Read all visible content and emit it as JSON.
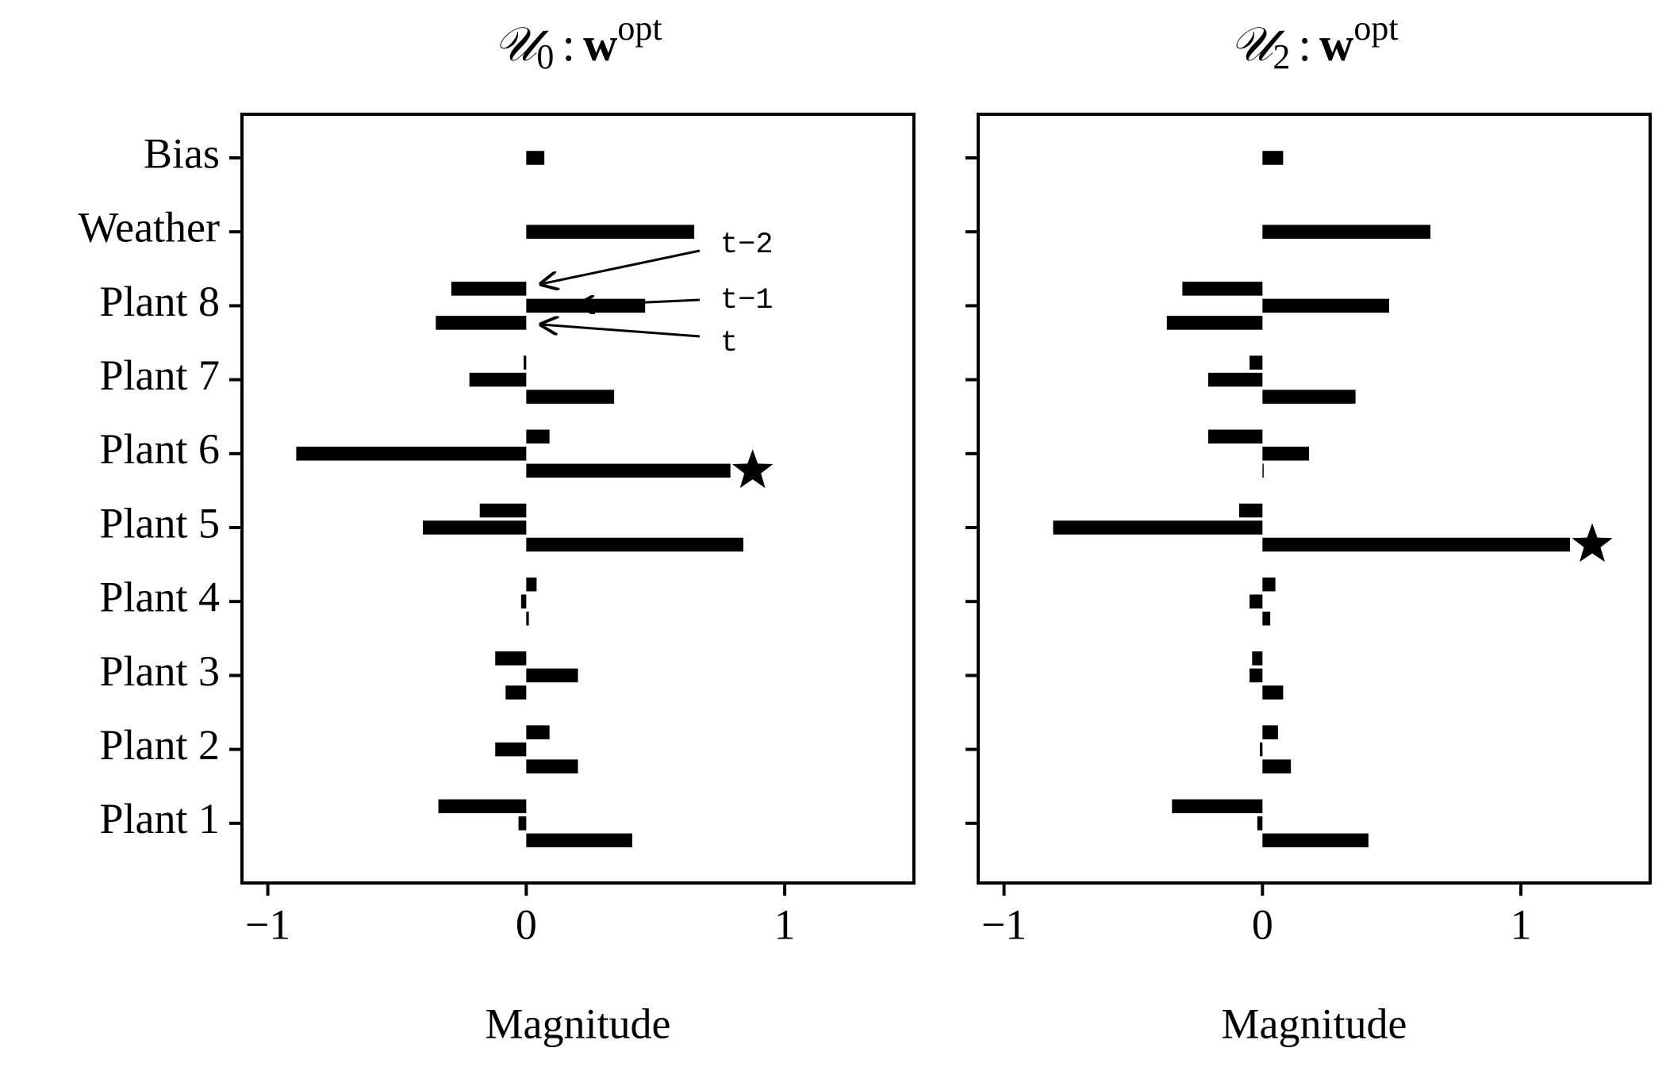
{
  "chart_data": [
    {
      "type": "barh",
      "title": {
        "base": "𝒰",
        "sub": "0",
        "sep": ":",
        "vec": "w",
        "sup": "opt"
      },
      "xlabel": "Magnitude",
      "categories": [
        "Bias",
        "Weather",
        "Plant 8",
        "Plant 7",
        "Plant 6",
        "Plant 5",
        "Plant 4",
        "Plant 3",
        "Plant 2",
        "Plant 1"
      ],
      "xlim": [
        -1.1,
        1.5
      ],
      "xticks": [
        {
          "value": -1,
          "label": "−1"
        },
        0,
        1
      ],
      "highlight": {
        "series": 2,
        "index": 4
      },
      "series": [
        {
          "name": "t−2",
          "color": "#000000",
          "values": [
            null,
            null,
            -0.29,
            -0.01,
            0.09,
            -0.18,
            0.04,
            -0.12,
            0.09,
            -0.34
          ]
        },
        {
          "name": "t−1",
          "color": "#000000",
          "values": [
            0.07,
            0.65,
            0.46,
            -0.22,
            -0.89,
            -0.4,
            -0.02,
            0.2,
            -0.12,
            -0.03
          ]
        },
        {
          "name": "t",
          "color": "#000000",
          "values": [
            null,
            null,
            -0.35,
            0.34,
            0.79,
            0.84,
            0.01,
            -0.08,
            0.2,
            0.41
          ]
        }
      ]
    },
    {
      "type": "barh",
      "title": {
        "base": "𝒰",
        "sub": "2",
        "sep": ":",
        "vec": "w",
        "sup": "opt"
      },
      "xlabel": "Magnitude",
      "xlim": [
        -1.1,
        1.5
      ],
      "xticks": [
        {
          "value": -1,
          "label": "−1"
        },
        0,
        1
      ],
      "highlight": {
        "series": 2,
        "index": 5
      },
      "series": [
        {
          "color": "#000000",
          "values": [
            null,
            null,
            -0.31,
            -0.05,
            -0.21,
            -0.09,
            0.05,
            -0.04,
            0.06,
            -0.35
          ]
        },
        {
          "color": "#000000",
          "values": [
            0.08,
            0.65,
            0.49,
            -0.21,
            0.18,
            -0.81,
            -0.05,
            -0.05,
            -0.01,
            -0.02
          ]
        },
        {
          "color": "#000000",
          "values": [
            null,
            null,
            -0.37,
            0.36,
            0,
            1.19,
            0.03,
            0.08,
            0.11,
            0.41
          ]
        }
      ]
    }
  ]
}
